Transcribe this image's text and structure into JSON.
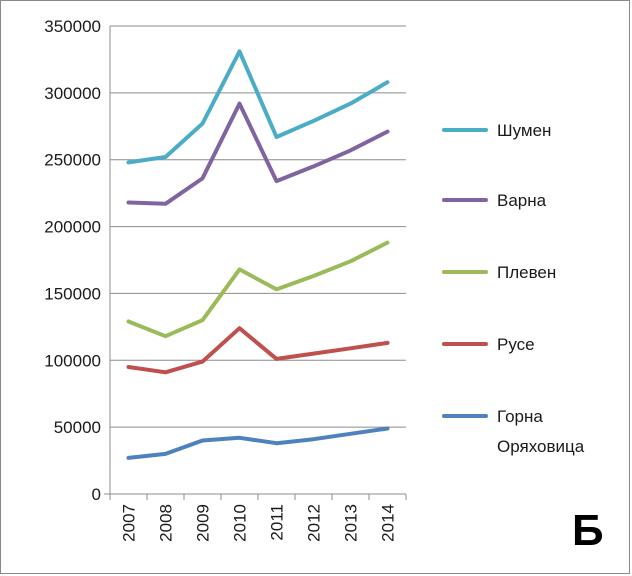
{
  "chart_data": {
    "type": "line",
    "categories": [
      "2007",
      "2008",
      "2009",
      "2010",
      "2011",
      "2012",
      "2013",
      "2014"
    ],
    "y_ticks": [
      "0",
      "50000",
      "100000",
      "150000",
      "200000",
      "250000",
      "300000",
      "350000"
    ],
    "ylim": [
      0,
      350000
    ],
    "grid": "horizontal",
    "legend_position": "right",
    "series": [
      {
        "name": "Шумен",
        "color": "#4BACC6",
        "values": [
          248000,
          252000,
          277000,
          331000,
          267000,
          279000,
          292000,
          308000
        ]
      },
      {
        "name": "Варна",
        "color": "#8064A2",
        "values": [
          218000,
          217000,
          236000,
          292000,
          234000,
          245000,
          257000,
          271000
        ]
      },
      {
        "name": "Плевен",
        "color": "#9BBB59",
        "values": [
          129000,
          118000,
          130000,
          168000,
          153000,
          163000,
          174000,
          188000
        ]
      },
      {
        "name": "Русе",
        "color": "#C0504D",
        "values": [
          95000,
          91000,
          99000,
          124000,
          101000,
          105000,
          109000,
          113000
        ]
      },
      {
        "name": "Горна Оряховица",
        "color": "#4F81BD",
        "values": [
          27000,
          30000,
          40000,
          42000,
          38000,
          41000,
          45000,
          49000
        ]
      }
    ]
  },
  "legend": [
    {
      "line1": "Шумен",
      "line2": ""
    },
    {
      "line1": "Варна",
      "line2": ""
    },
    {
      "line1": "Плевен",
      "line2": ""
    },
    {
      "line1": "Русе",
      "line2": ""
    },
    {
      "line1": "Горна",
      "line2": "Оряховица"
    }
  ],
  "panel_label": "Б"
}
